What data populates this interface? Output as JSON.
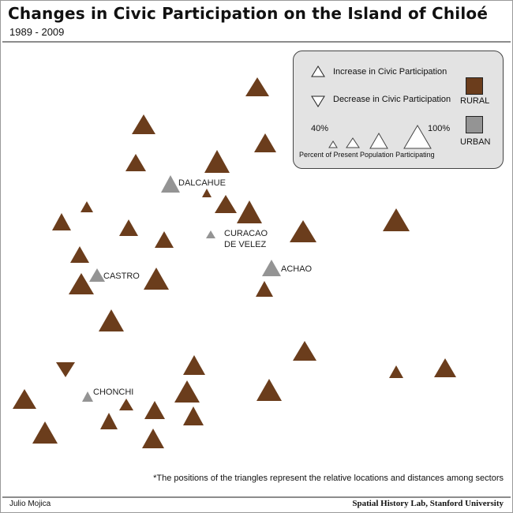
{
  "title": "Changes in Civic Participation on the Island of Chiloé",
  "subtitle": "1989 - 2009",
  "footnote": "*The positions of the triangles represent the relative locations and distances among sectors",
  "author": "Julio Mojica",
  "credit": "Spatial History Lab, Stanford University",
  "colors": {
    "rural": "#6b3d1c",
    "urban": "#949494",
    "legend_bg": "#e3e3e3",
    "rule": "#8c8c8c"
  },
  "legend": {
    "increase": "Increase in Civic Participation",
    "decrease": "Decrease in Civic Participation",
    "rural": "RURAL",
    "urban": "URBAN",
    "min_label": "40%",
    "max_label": "100%",
    "scale_caption": "Percent of Present Population Participating"
  },
  "places": {
    "dalcahue": "DALCAHUE",
    "curacao_line1": "CURACAO",
    "curacao_line2": "DE VELEZ",
    "achao": "ACHAO",
    "castro": "CASTRO",
    "chonchi": "CHONCHI"
  }
}
